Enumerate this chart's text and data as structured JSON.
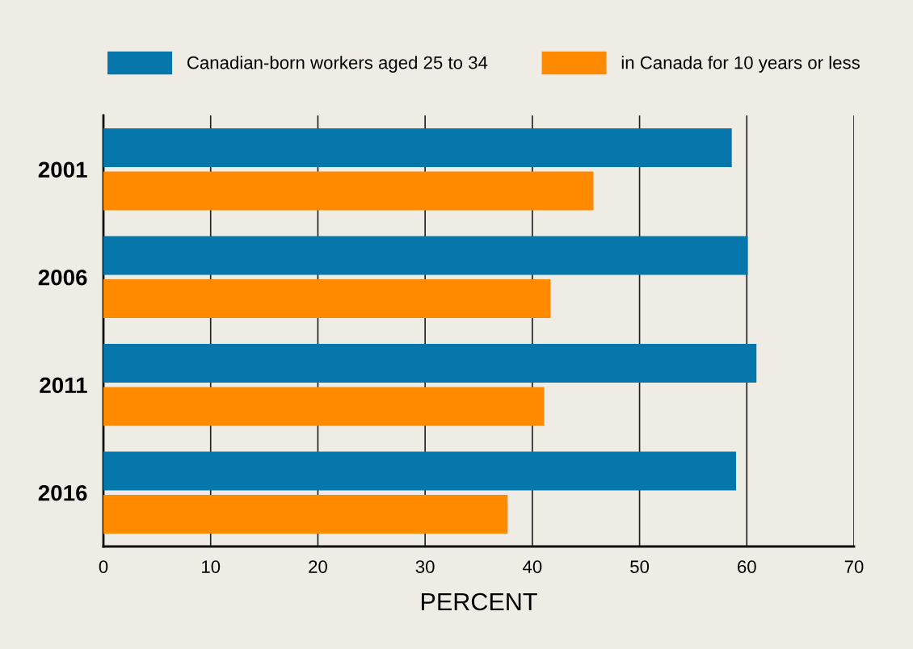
{
  "chart_data": {
    "type": "bar",
    "orientation": "horizontal",
    "xlabel": "PERCENT",
    "categories": [
      "2001",
      "2006",
      "2011",
      "2016"
    ],
    "series": [
      {
        "name": "Canadian-born workers aged 25 to 34",
        "color": "#0577aa",
        "values": [
          58.6,
          60.1,
          60.9,
          59.0
        ]
      },
      {
        "name": "in Canada for 10 years or less",
        "color": "#ff8a00",
        "values": [
          45.7,
          41.7,
          41.1,
          37.7
        ]
      }
    ],
    "xlim": [
      0,
      70
    ],
    "xticks": [
      0,
      10,
      20,
      30,
      40,
      50,
      60,
      70
    ],
    "grid": "x",
    "legend": "top"
  }
}
